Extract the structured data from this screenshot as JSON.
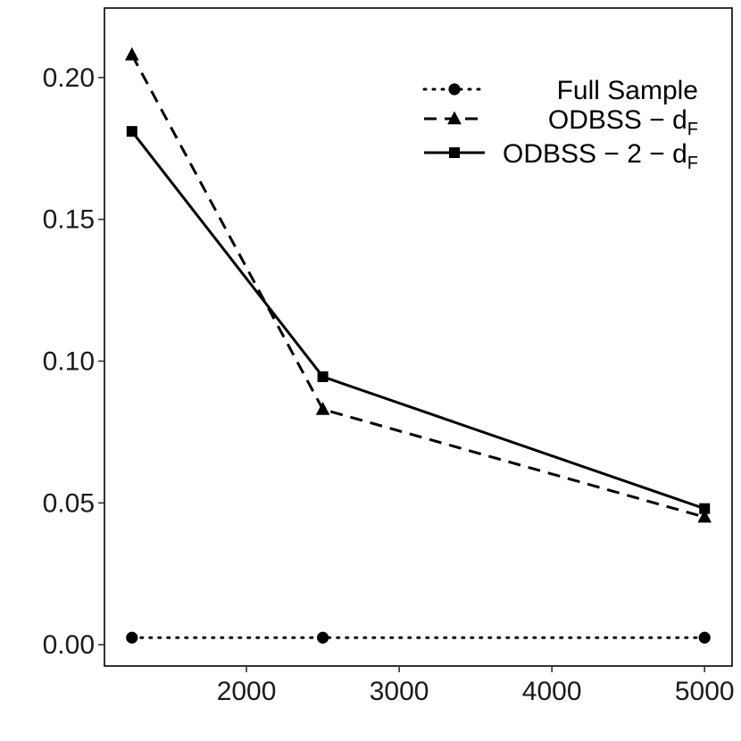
{
  "chart_data": {
    "type": "line",
    "title": "",
    "xlabel": "",
    "ylabel": "",
    "x": [
      1250,
      2500,
      5000
    ],
    "xlim": [
      1070,
      5180
    ],
    "ylim": [
      -0.0075,
      0.2245
    ],
    "xticks": [
      2000,
      3000,
      4000,
      5000
    ],
    "xtick_labels": [
      "2000",
      "3000",
      "4000",
      "5000"
    ],
    "yticks": [
      0.0,
      0.05,
      0.1,
      0.15,
      0.2
    ],
    "ytick_labels": [
      "0.00",
      "0.05",
      "0.10",
      "0.15",
      "0.20"
    ],
    "grid": false,
    "legend_position": "top-right",
    "series": [
      {
        "name": "Full Sample",
        "label_main": "Full Sample",
        "label_sub": "",
        "values": [
          0.0025,
          0.0025,
          0.0025
        ],
        "line_style": "dotted",
        "marker": "circle",
        "color": "#000000"
      },
      {
        "name": "ODBSS − dF",
        "label_main": "ODBSS − d",
        "label_sub": "F",
        "values": [
          0.208,
          0.083,
          0.045
        ],
        "line_style": "dashed",
        "marker": "triangle",
        "color": "#000000"
      },
      {
        "name": "ODBSS − 2 − dF",
        "label_main": "ODBSS − 2 − d",
        "label_sub": "F",
        "values": [
          0.181,
          0.0945,
          0.048
        ],
        "line_style": "solid",
        "marker": "square",
        "color": "#000000"
      }
    ]
  }
}
